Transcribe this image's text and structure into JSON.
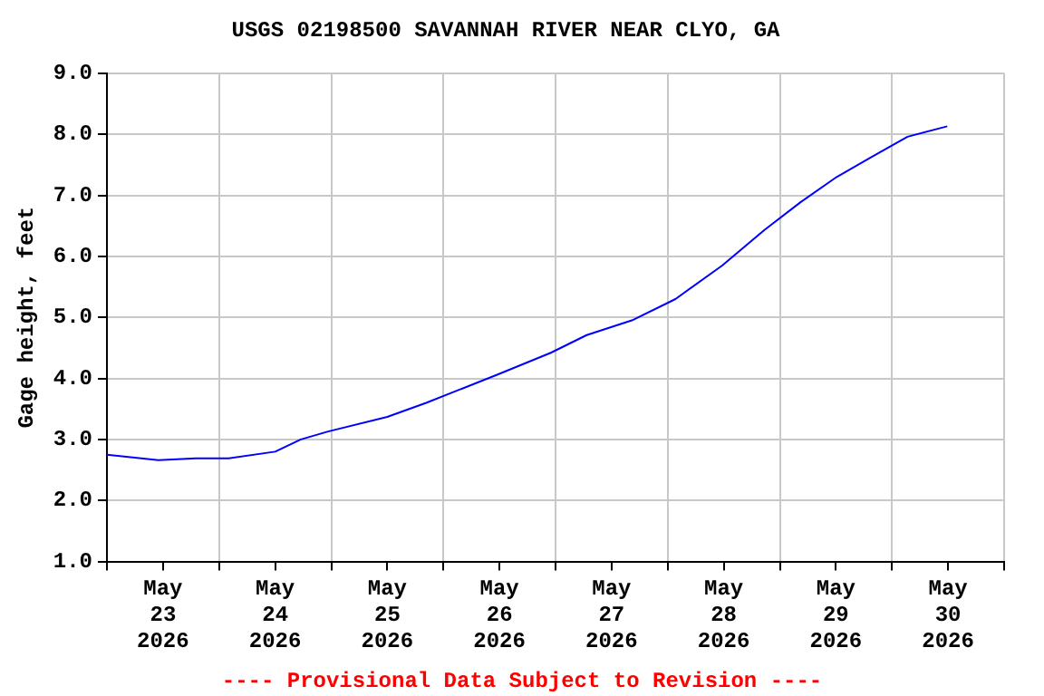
{
  "chart_data": {
    "type": "line",
    "title": "USGS 02198500 SAVANNAH RIVER NEAR CLYO, GA",
    "ylabel": "Gage height, feet",
    "annotations": [
      "---- Provisional Data Subject to Revision ----"
    ],
    "series": [
      {
        "color": "#0000ff",
        "x": [
          "2026-05-23T00:00",
          "2026-05-23T11:00",
          "2026-05-23T19:00",
          "2026-05-24T02:00",
          "2026-05-24T12:00",
          "2026-05-24T17:30",
          "2026-05-24T23:20",
          "2026-05-25T12:00",
          "2026-05-25T20:20",
          "2026-05-26T11:30",
          "2026-05-26T23:00",
          "2026-05-27T06:40",
          "2026-05-27T16:20",
          "2026-05-28T01:40",
          "2026-05-28T11:40",
          "2026-05-28T20:50",
          "2026-05-29T04:30",
          "2026-05-29T12:10",
          "2026-05-29T19:40",
          "2026-05-30T03:20",
          "2026-05-30T11:50"
        ],
        "values": [
          2.75,
          2.66,
          2.69,
          2.69,
          2.8,
          3.0,
          3.13,
          3.37,
          3.6,
          4.06,
          4.42,
          4.71,
          4.95,
          5.3,
          5.85,
          6.44,
          6.89,
          7.3,
          7.63,
          7.96,
          8.13
        ]
      }
    ],
    "xlim": [
      "2026-05-23T00:00",
      "2026-05-31T00:00"
    ],
    "xticks": [
      {
        "value": "2026-05-23T00:00",
        "label": null
      },
      {
        "value": "2026-05-23T12:00",
        "label": "May 23 2026"
      },
      {
        "value": "2026-05-24T00:00",
        "label": null
      },
      {
        "value": "2026-05-24T12:00",
        "label": "May 24 2026"
      },
      {
        "value": "2026-05-25T00:00",
        "label": null
      },
      {
        "value": "2026-05-25T12:00",
        "label": "May 25 2026"
      },
      {
        "value": "2026-05-26T00:00",
        "label": null
      },
      {
        "value": "2026-05-26T12:00",
        "label": "May 26 2026"
      },
      {
        "value": "2026-05-27T00:00",
        "label": null
      },
      {
        "value": "2026-05-27T12:00",
        "label": "May 27 2026"
      },
      {
        "value": "2026-05-28T00:00",
        "label": null
      },
      {
        "value": "2026-05-28T12:00",
        "label": "May 28 2026"
      },
      {
        "value": "2026-05-29T00:00",
        "label": null
      },
      {
        "value": "2026-05-29T12:00",
        "label": "May 29 2026"
      },
      {
        "value": "2026-05-30T00:00",
        "label": null
      },
      {
        "value": "2026-05-30T12:00",
        "label": "May 30 2026"
      },
      {
        "value": "2026-05-31T00:00",
        "label": null
      }
    ],
    "ylim": [
      1,
      9
    ],
    "yticks": [
      {
        "value": 1,
        "label": "1.0"
      },
      {
        "value": 2,
        "label": "2.0"
      },
      {
        "value": 3,
        "label": "3.0"
      },
      {
        "value": 4,
        "label": "4.0"
      },
      {
        "value": 5,
        "label": "5.0"
      },
      {
        "value": 6,
        "label": "6.0"
      },
      {
        "value": 7,
        "label": "7.0"
      },
      {
        "value": 8,
        "label": "8.0"
      },
      {
        "value": 9,
        "label": "9.0"
      }
    ],
    "grid": true,
    "legend": false,
    "marker": "none",
    "line_style": "solid"
  }
}
